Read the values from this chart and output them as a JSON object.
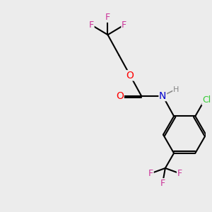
{
  "background_color": "#ececec",
  "bond_color": "#000000",
  "atom_colors": {
    "F": "#cc3399",
    "O": "#ff0000",
    "N": "#0000cc",
    "Cl": "#33cc33",
    "H": "#888888",
    "C": "#000000"
  },
  "bond_width": 1.5,
  "figsize": [
    3.0,
    3.0
  ],
  "dpi": 100,
  "xlim": [
    0,
    10
  ],
  "ylim": [
    0,
    10
  ]
}
